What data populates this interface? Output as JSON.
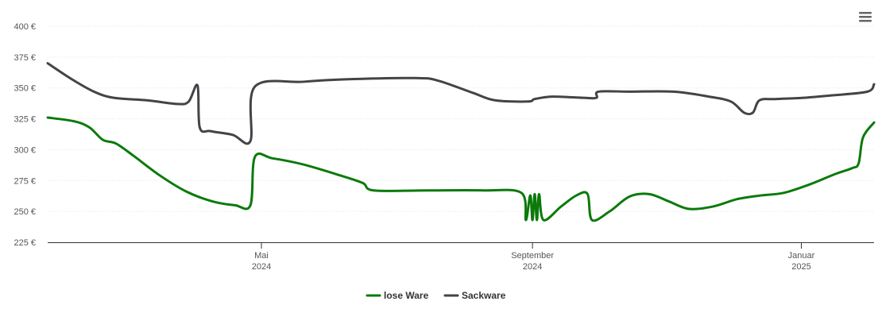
{
  "chart_data": {
    "type": "line",
    "y_ticks": [
      "225 €",
      "250 €",
      "275 €",
      "300 €",
      "325 €",
      "350 €",
      "375 €",
      "400 €"
    ],
    "ylim": [
      225,
      400
    ],
    "x_ticks": [
      {
        "date": "2024-05-01",
        "month": "Mai",
        "year": "2024"
      },
      {
        "date": "2024-09-01",
        "month": "September",
        "year": "2024"
      },
      {
        "date": "2025-01-01",
        "month": "Januar",
        "year": "2025"
      }
    ],
    "xlim": [
      "2024-01-25",
      "2025-02-03"
    ],
    "grid": true,
    "legend_position": "bottom",
    "series": [
      {
        "name": "lose Ware",
        "color": "#0b7a0b",
        "points": [
          [
            "2024-01-25",
            326
          ],
          [
            "2024-02-06",
            323
          ],
          [
            "2024-02-13",
            318
          ],
          [
            "2024-02-19",
            308
          ],
          [
            "2024-02-25",
            305
          ],
          [
            "2024-03-04",
            295
          ],
          [
            "2024-03-16",
            279
          ],
          [
            "2024-03-28",
            266
          ],
          [
            "2024-04-09",
            258
          ],
          [
            "2024-04-19",
            255
          ],
          [
            "2024-04-26",
            255
          ],
          [
            "2024-04-28",
            294
          ],
          [
            "2024-05-06",
            293
          ],
          [
            "2024-05-20",
            288
          ],
          [
            "2024-06-06",
            279
          ],
          [
            "2024-06-16",
            273
          ],
          [
            "2024-06-21",
            267
          ],
          [
            "2024-07-15",
            267
          ],
          [
            "2024-08-10",
            267
          ],
          [
            "2024-08-27",
            265
          ],
          [
            "2024-08-29",
            243
          ],
          [
            "2024-08-31",
            263
          ],
          [
            "2024-09-01",
            243
          ],
          [
            "2024-09-02",
            264
          ],
          [
            "2024-09-03",
            243
          ],
          [
            "2024-09-04",
            264
          ],
          [
            "2024-09-06",
            243
          ],
          [
            "2024-09-14",
            254
          ],
          [
            "2024-09-21",
            263
          ],
          [
            "2024-09-26",
            264
          ],
          [
            "2024-09-28",
            243
          ],
          [
            "2024-10-06",
            250
          ],
          [
            "2024-10-15",
            262
          ],
          [
            "2024-10-24",
            264
          ],
          [
            "2024-11-02",
            258
          ],
          [
            "2024-11-11",
            252
          ],
          [
            "2024-11-22",
            254
          ],
          [
            "2024-12-03",
            260
          ],
          [
            "2024-12-14",
            263
          ],
          [
            "2024-12-24",
            265
          ],
          [
            "2025-01-05",
            272
          ],
          [
            "2025-01-16",
            280
          ],
          [
            "2025-01-24",
            285
          ],
          [
            "2025-01-27",
            289
          ],
          [
            "2025-01-29",
            310
          ],
          [
            "2025-02-03",
            322
          ]
        ]
      },
      {
        "name": "Sackware",
        "color": "#434348",
        "points": [
          [
            "2024-01-25",
            370
          ],
          [
            "2024-02-05",
            357
          ],
          [
            "2024-02-15",
            347
          ],
          [
            "2024-02-24",
            342
          ],
          [
            "2024-03-10",
            340
          ],
          [
            "2024-03-24",
            337
          ],
          [
            "2024-03-29",
            339
          ],
          [
            "2024-04-02",
            352
          ],
          [
            "2024-04-03",
            318
          ],
          [
            "2024-04-08",
            315
          ],
          [
            "2024-04-18",
            312
          ],
          [
            "2024-04-26",
            307
          ],
          [
            "2024-04-28",
            351
          ],
          [
            "2024-05-20",
            355
          ],
          [
            "2024-06-08",
            357
          ],
          [
            "2024-07-10",
            358
          ],
          [
            "2024-07-20",
            356
          ],
          [
            "2024-08-05",
            346
          ],
          [
            "2024-08-15",
            340
          ],
          [
            "2024-08-30",
            339
          ],
          [
            "2024-09-02",
            341
          ],
          [
            "2024-09-10",
            343
          ],
          [
            "2024-09-24",
            342
          ],
          [
            "2024-09-30",
            342
          ],
          [
            "2024-10-01",
            347
          ],
          [
            "2024-10-15",
            347
          ],
          [
            "2024-11-04",
            347
          ],
          [
            "2024-11-20",
            343
          ],
          [
            "2024-11-30",
            339
          ],
          [
            "2024-12-06",
            330
          ],
          [
            "2024-12-10",
            330
          ],
          [
            "2024-12-13",
            340
          ],
          [
            "2024-12-20",
            341
          ],
          [
            "2025-01-02",
            342
          ],
          [
            "2025-01-15",
            344
          ],
          [
            "2025-01-31",
            347
          ],
          [
            "2025-02-03",
            353
          ]
        ]
      }
    ]
  }
}
